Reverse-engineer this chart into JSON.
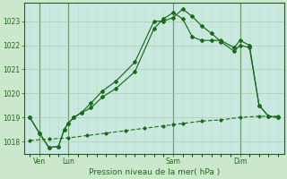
{
  "title": "",
  "xlabel": "Pression niveau de la mer( hPa )",
  "bg_color": "#cce8cc",
  "plot_bg_color": "#c8e8e0",
  "grid_color_major": "#aacfaa",
  "grid_color_minor": "#bbddbf",
  "line_color": "#1a6b1a",
  "dark_vline_color": "#2a5a2a",
  "ylim": [
    1017.5,
    1023.75
  ],
  "xlim": [
    -0.3,
    13.3
  ],
  "ytick_positions": [
    1018,
    1019,
    1020,
    1021,
    1022,
    1023
  ],
  "xtick_labels": [
    "Ven",
    "Lun",
    "Sam",
    "Dim"
  ],
  "xtick_positions": [
    0.5,
    2.0,
    7.5,
    11.0
  ],
  "vline_positions": [
    0.5,
    2.0,
    7.5,
    11.0
  ],
  "line1_x": [
    0.0,
    0.5,
    1.0,
    1.5,
    1.8,
    2.0,
    2.3,
    2.7,
    3.2,
    3.8,
    4.5,
    5.5,
    6.5,
    7.0,
    7.5,
    8.0,
    8.5,
    9.0,
    9.5,
    10.0,
    10.7,
    11.0,
    11.5,
    12.0,
    12.5,
    13.0
  ],
  "line1_y": [
    1019.0,
    1018.35,
    1017.75,
    1017.8,
    1018.5,
    1018.75,
    1019.0,
    1019.2,
    1019.6,
    1020.1,
    1020.5,
    1021.3,
    1023.0,
    1023.0,
    1023.15,
    1023.5,
    1023.2,
    1022.8,
    1022.5,
    1022.15,
    1021.75,
    1022.0,
    1021.9,
    1019.5,
    1019.05,
    1019.0
  ],
  "line2_x": [
    0.0,
    0.5,
    1.0,
    1.5,
    1.8,
    2.0,
    2.3,
    2.7,
    3.2,
    3.8,
    4.5,
    5.5,
    6.5,
    7.0,
    7.5,
    8.0,
    8.5,
    9.0,
    9.5,
    10.0,
    10.7,
    11.0,
    11.5,
    12.0,
    12.5,
    13.0
  ],
  "line2_y": [
    1019.0,
    1018.35,
    1017.75,
    1017.8,
    1018.5,
    1018.75,
    1019.0,
    1019.2,
    1019.4,
    1019.85,
    1020.2,
    1020.9,
    1022.7,
    1023.1,
    1023.35,
    1023.1,
    1022.35,
    1022.2,
    1022.2,
    1022.2,
    1021.9,
    1022.2,
    1022.0,
    1019.5,
    1019.05,
    1019.0
  ],
  "line3_x": [
    0.0,
    1.0,
    2.0,
    3.0,
    4.0,
    5.0,
    6.0,
    7.0,
    7.5,
    8.0,
    9.0,
    10.0,
    11.0,
    12.0,
    13.0
  ],
  "line3_y": [
    1018.05,
    1018.1,
    1018.15,
    1018.25,
    1018.35,
    1018.45,
    1018.55,
    1018.65,
    1018.7,
    1018.75,
    1018.85,
    1018.9,
    1019.0,
    1019.05,
    1019.05
  ],
  "markersize": 2.0
}
